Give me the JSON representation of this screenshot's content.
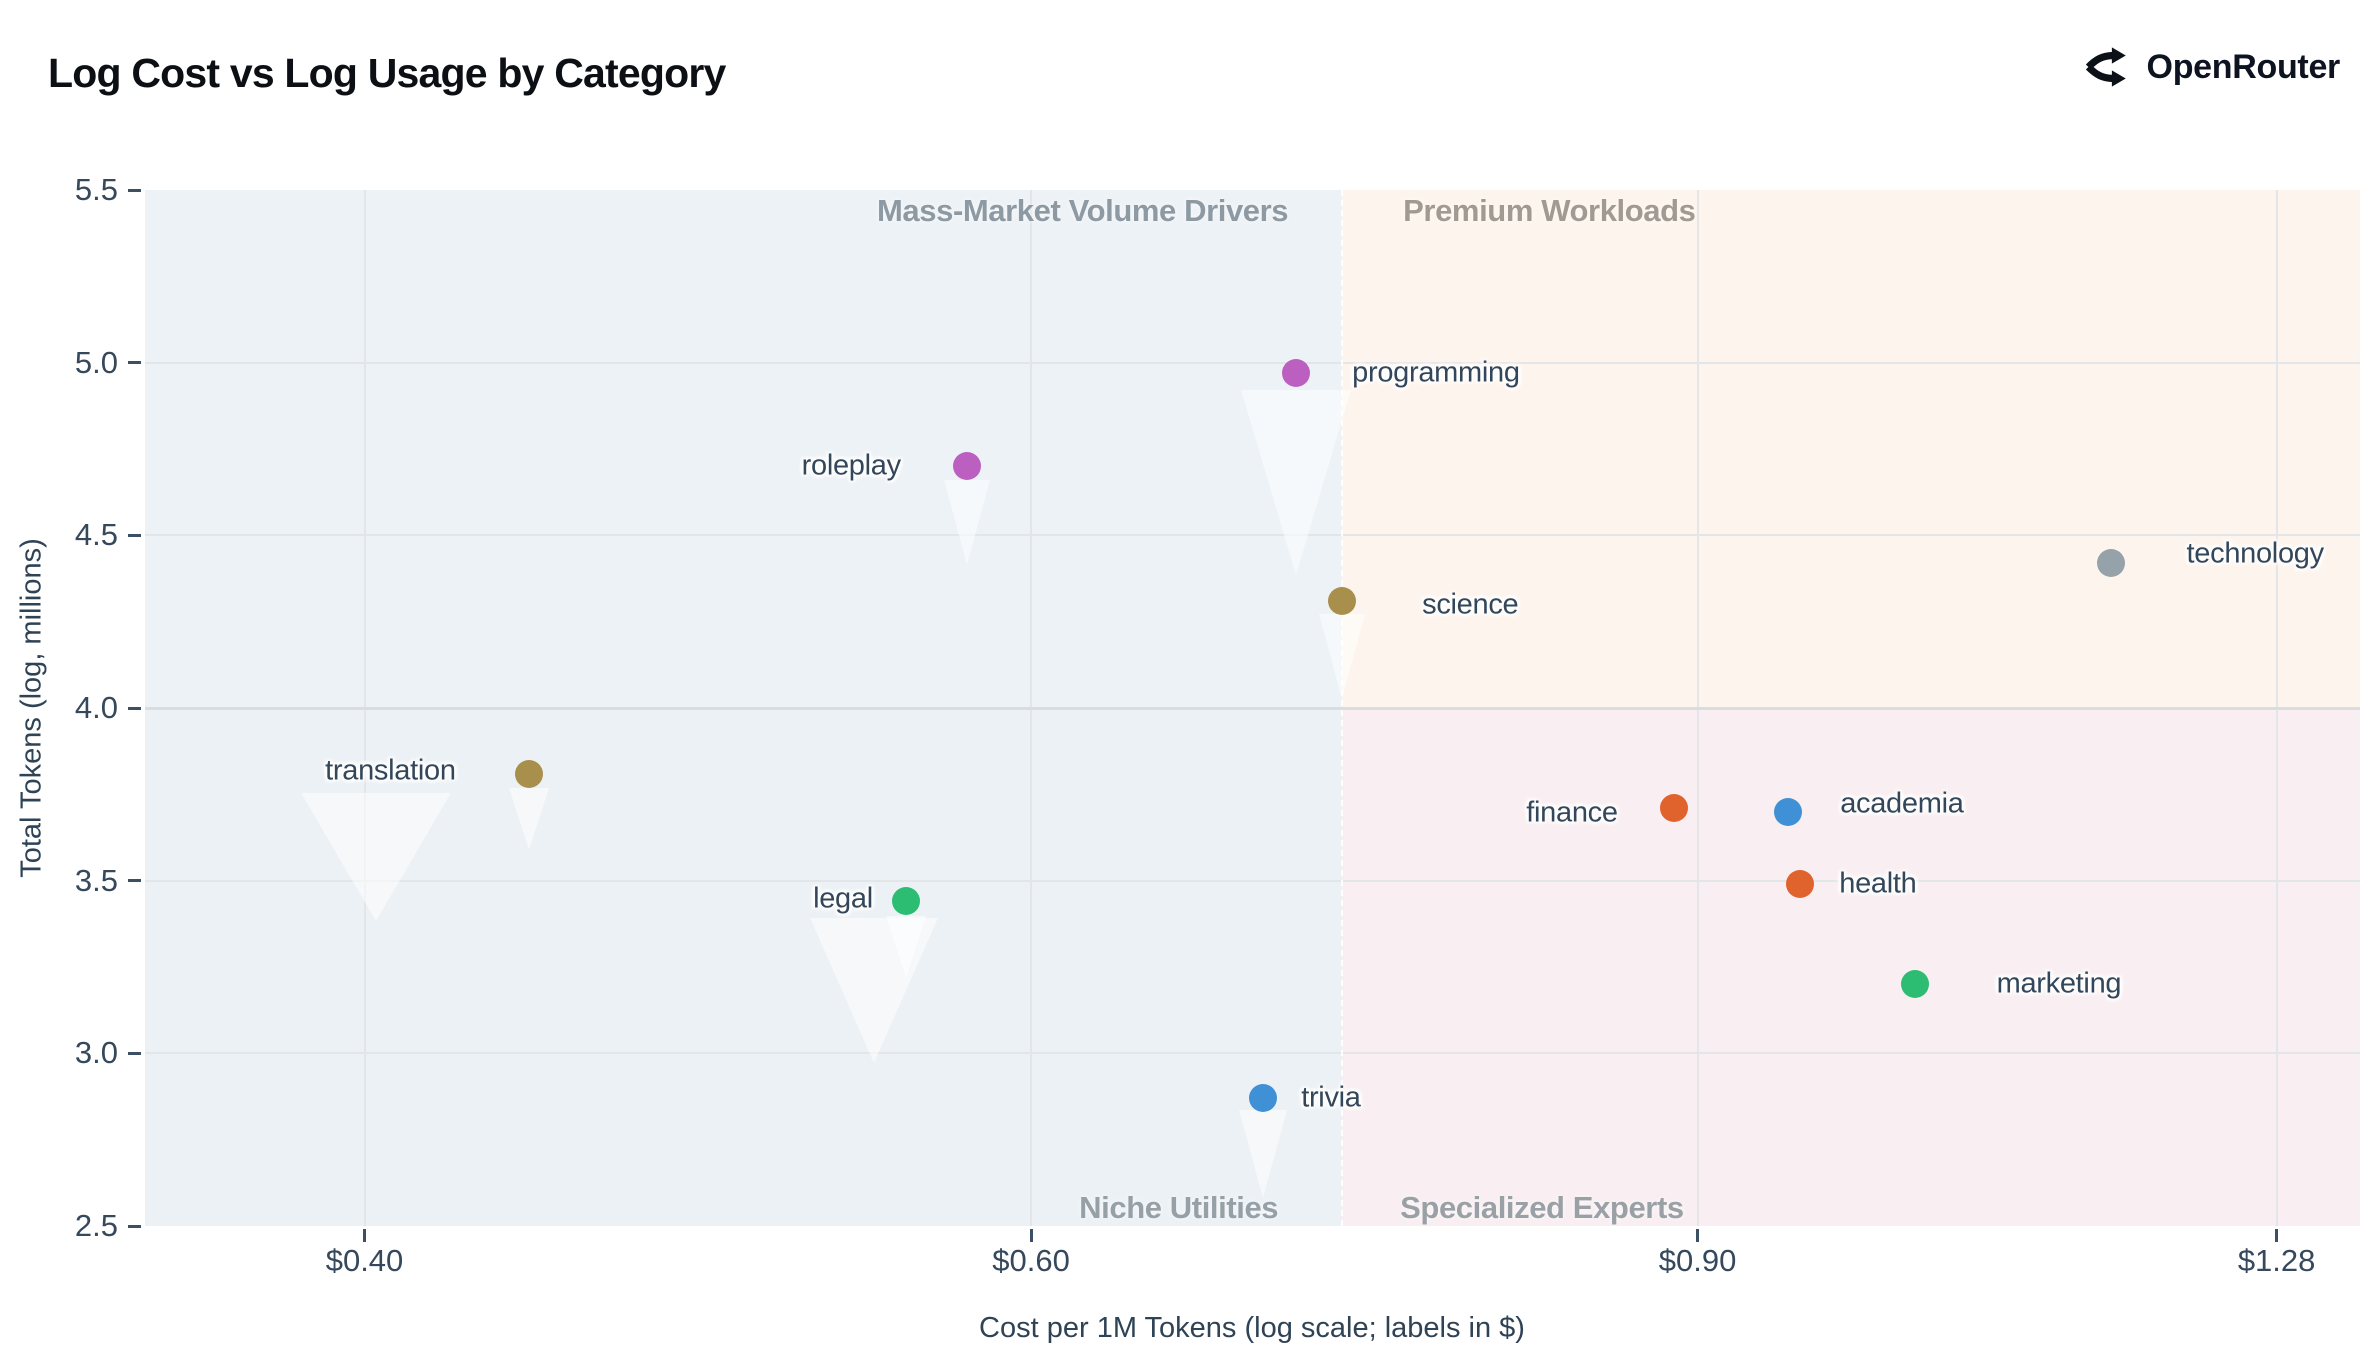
{
  "header": {
    "title": "Log Cost vs Log Usage by Category",
    "brand": "OpenRouter"
  },
  "chart_data": {
    "type": "scatter",
    "title": "Log Cost vs Log Usage by Category",
    "xlabel": "Cost per 1M Tokens (log scale; labels in $)",
    "ylabel": "Total Tokens (log, millions)",
    "x_scale": "log",
    "y_scale": "linear",
    "x_domain": [
      0.35,
      1.3466
    ],
    "y_domain": [
      2.5,
      5.5
    ],
    "grid": true,
    "x_ticks": [
      {
        "label": "$0.40",
        "value": 0.4
      },
      {
        "label": "$0.60",
        "value": 0.6
      },
      {
        "label": "$0.90",
        "value": 0.9
      },
      {
        "label": "$1.28",
        "value": 1.28
      }
    ],
    "y_ticks": [
      {
        "label": "5.5",
        "value": 5.5
      },
      {
        "label": "5.0",
        "value": 5.0
      },
      {
        "label": "4.5",
        "value": 4.5
      },
      {
        "label": "4.0",
        "value": 4.0
      },
      {
        "label": "3.5",
        "value": 3.5
      },
      {
        "label": "3.0",
        "value": 3.0
      },
      {
        "label": "2.5",
        "value": 2.5
      }
    ],
    "quadrants": {
      "x_split": 0.725,
      "y_split": 4.0,
      "regions": [
        {
          "id": "mass-market",
          "pos": "top-left",
          "label": "Mass-Market Volume Drivers",
          "bg": "#edf2f6",
          "label_color": "#8d99a3"
        },
        {
          "id": "premium",
          "pos": "top-right",
          "label": "Premium Workloads",
          "bg": "#fdf4ed",
          "label_color": "#a29a91"
        },
        {
          "id": "niche",
          "pos": "bottom-left",
          "label": "Niche Utilities",
          "bg": "#ecf1f5",
          "label_color": "#96a0a7"
        },
        {
          "id": "specialized",
          "pos": "bottom-right",
          "label": "Specialized Experts",
          "bg": "#f9eef1",
          "label_color": "#9aa1a6"
        }
      ]
    },
    "points": [
      {
        "label": "programming",
        "cost": 0.705,
        "usage": 4.97,
        "color": "#bb60c0",
        "side": "right",
        "gap": 56,
        "dy": 0
      },
      {
        "label": "roleplay",
        "cost": 0.577,
        "usage": 4.7,
        "color": "#bb60c0",
        "side": "left",
        "gap": 66,
        "dy": 0
      },
      {
        "label": "science",
        "cost": 0.725,
        "usage": 4.31,
        "color": "#a8904c",
        "side": "right",
        "gap": 80,
        "dy": 4
      },
      {
        "label": "technology",
        "cost": 1.157,
        "usage": 4.42,
        "color": "#95a2a9",
        "side": "right",
        "gap": 76,
        "dy": -9
      },
      {
        "label": "translation",
        "cost": 0.442,
        "usage": 3.81,
        "color": "#a8904c",
        "side": "left",
        "gap": 73,
        "dy": -3
      },
      {
        "label": "finance",
        "cost": 0.887,
        "usage": 3.71,
        "color": "#e0622d",
        "side": "left",
        "gap": 56,
        "dy": 5
      },
      {
        "label": "academia",
        "cost": 0.951,
        "usage": 3.7,
        "color": "#4090d6",
        "side": "right",
        "gap": 52,
        "dy": -8
      },
      {
        "label": "health",
        "cost": 0.958,
        "usage": 3.49,
        "color": "#e0622d",
        "side": "right",
        "gap": 39,
        "dy": 0
      },
      {
        "label": "legal",
        "cost": 0.556,
        "usage": 3.44,
        "color": "#2cbd72",
        "side": "left",
        "gap": 33,
        "dy": -2
      },
      {
        "label": "marketing",
        "cost": 1.027,
        "usage": 3.2,
        "color": "#2cbd72",
        "side": "right",
        "gap": 82,
        "dy": 0
      },
      {
        "label": "trivia",
        "cost": 0.691,
        "usage": 2.87,
        "color": "#4090d6",
        "side": "right",
        "gap": 38,
        "dy": 0
      }
    ]
  }
}
